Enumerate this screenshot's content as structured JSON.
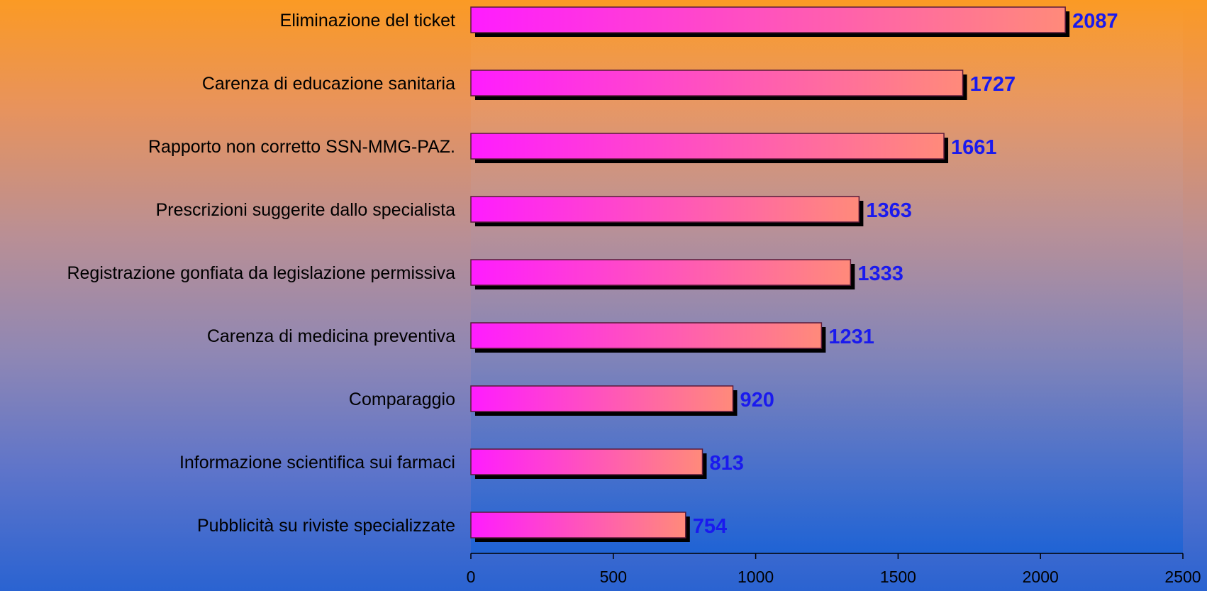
{
  "chart_data": {
    "type": "bar",
    "orientation": "horizontal",
    "categories": [
      "Eliminazione del ticket",
      "Carenza di educazione sanitaria",
      "Rapporto non corretto SSN-MMG-PAZ.",
      "Prescrizioni suggerite dallo specialista",
      "Registrazione gonfiata da legislazione permissiva",
      "Carenza di medicina preventiva",
      "Comparaggio",
      "Informazione scientifica sui farmaci",
      "Pubblicità su riviste specializzate"
    ],
    "values": [
      2087,
      1727,
      1661,
      1363,
      1333,
      1231,
      920,
      813,
      754
    ],
    "xlim": [
      0,
      2500
    ],
    "ticks": [
      0,
      500,
      1000,
      1500,
      2000,
      2500
    ],
    "title": "",
    "xlabel": "",
    "ylabel": "",
    "grid": false,
    "legend": "none"
  },
  "colors": {
    "bar_start": "#ff1cff",
    "bar_end": "#ff8a7a",
    "bar_shadow": "#000000",
    "value_label": "#1a1aee",
    "plot_area": "#1a62d6"
  }
}
